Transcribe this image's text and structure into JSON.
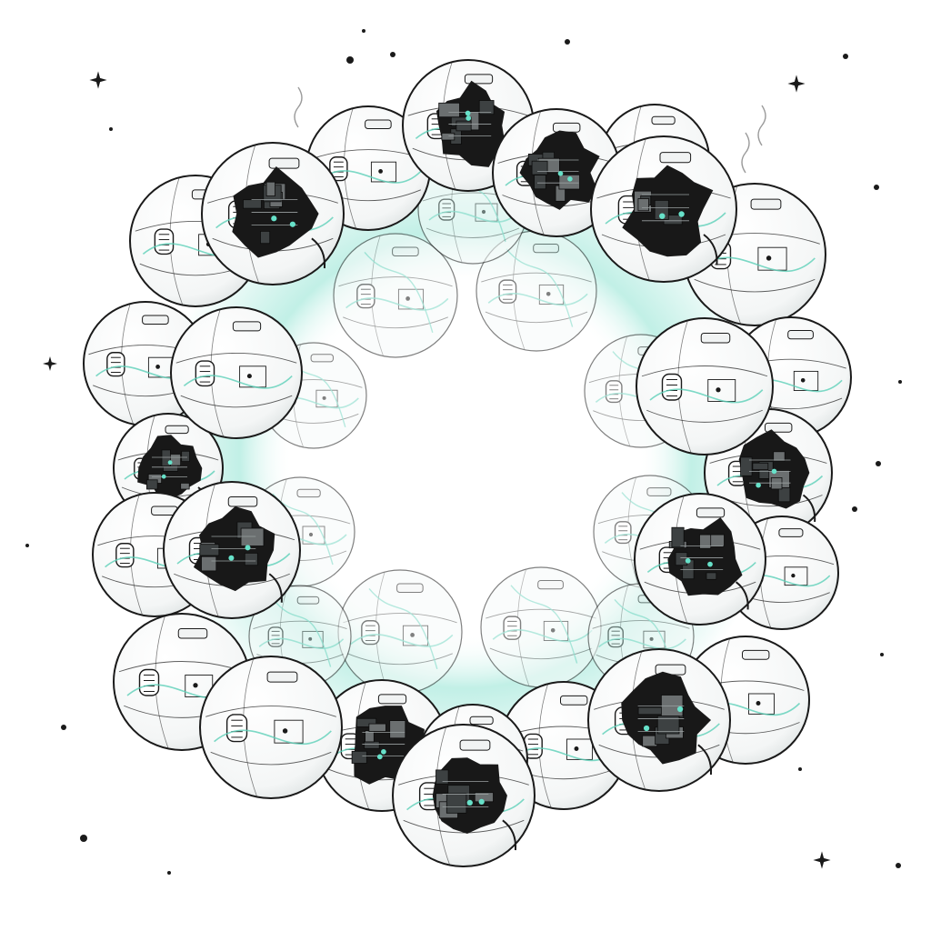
{
  "scene": {
    "subject": "ring-of-robot-spheres",
    "style": "monochrome-line-art",
    "colors": {
      "background": "#ffffff",
      "ink": "#1a1a1a",
      "glow": "#8fe3d2",
      "wire": "#5ccfb8",
      "shell": "#fbfbfb",
      "panel": "#f1f3f3",
      "damage": "#181818",
      "damage_detail": "#6b6f70",
      "node": "#67e1c9"
    },
    "counts": {
      "spheres": 30,
      "damaged_spheres": 10,
      "stars": 22
    }
  }
}
